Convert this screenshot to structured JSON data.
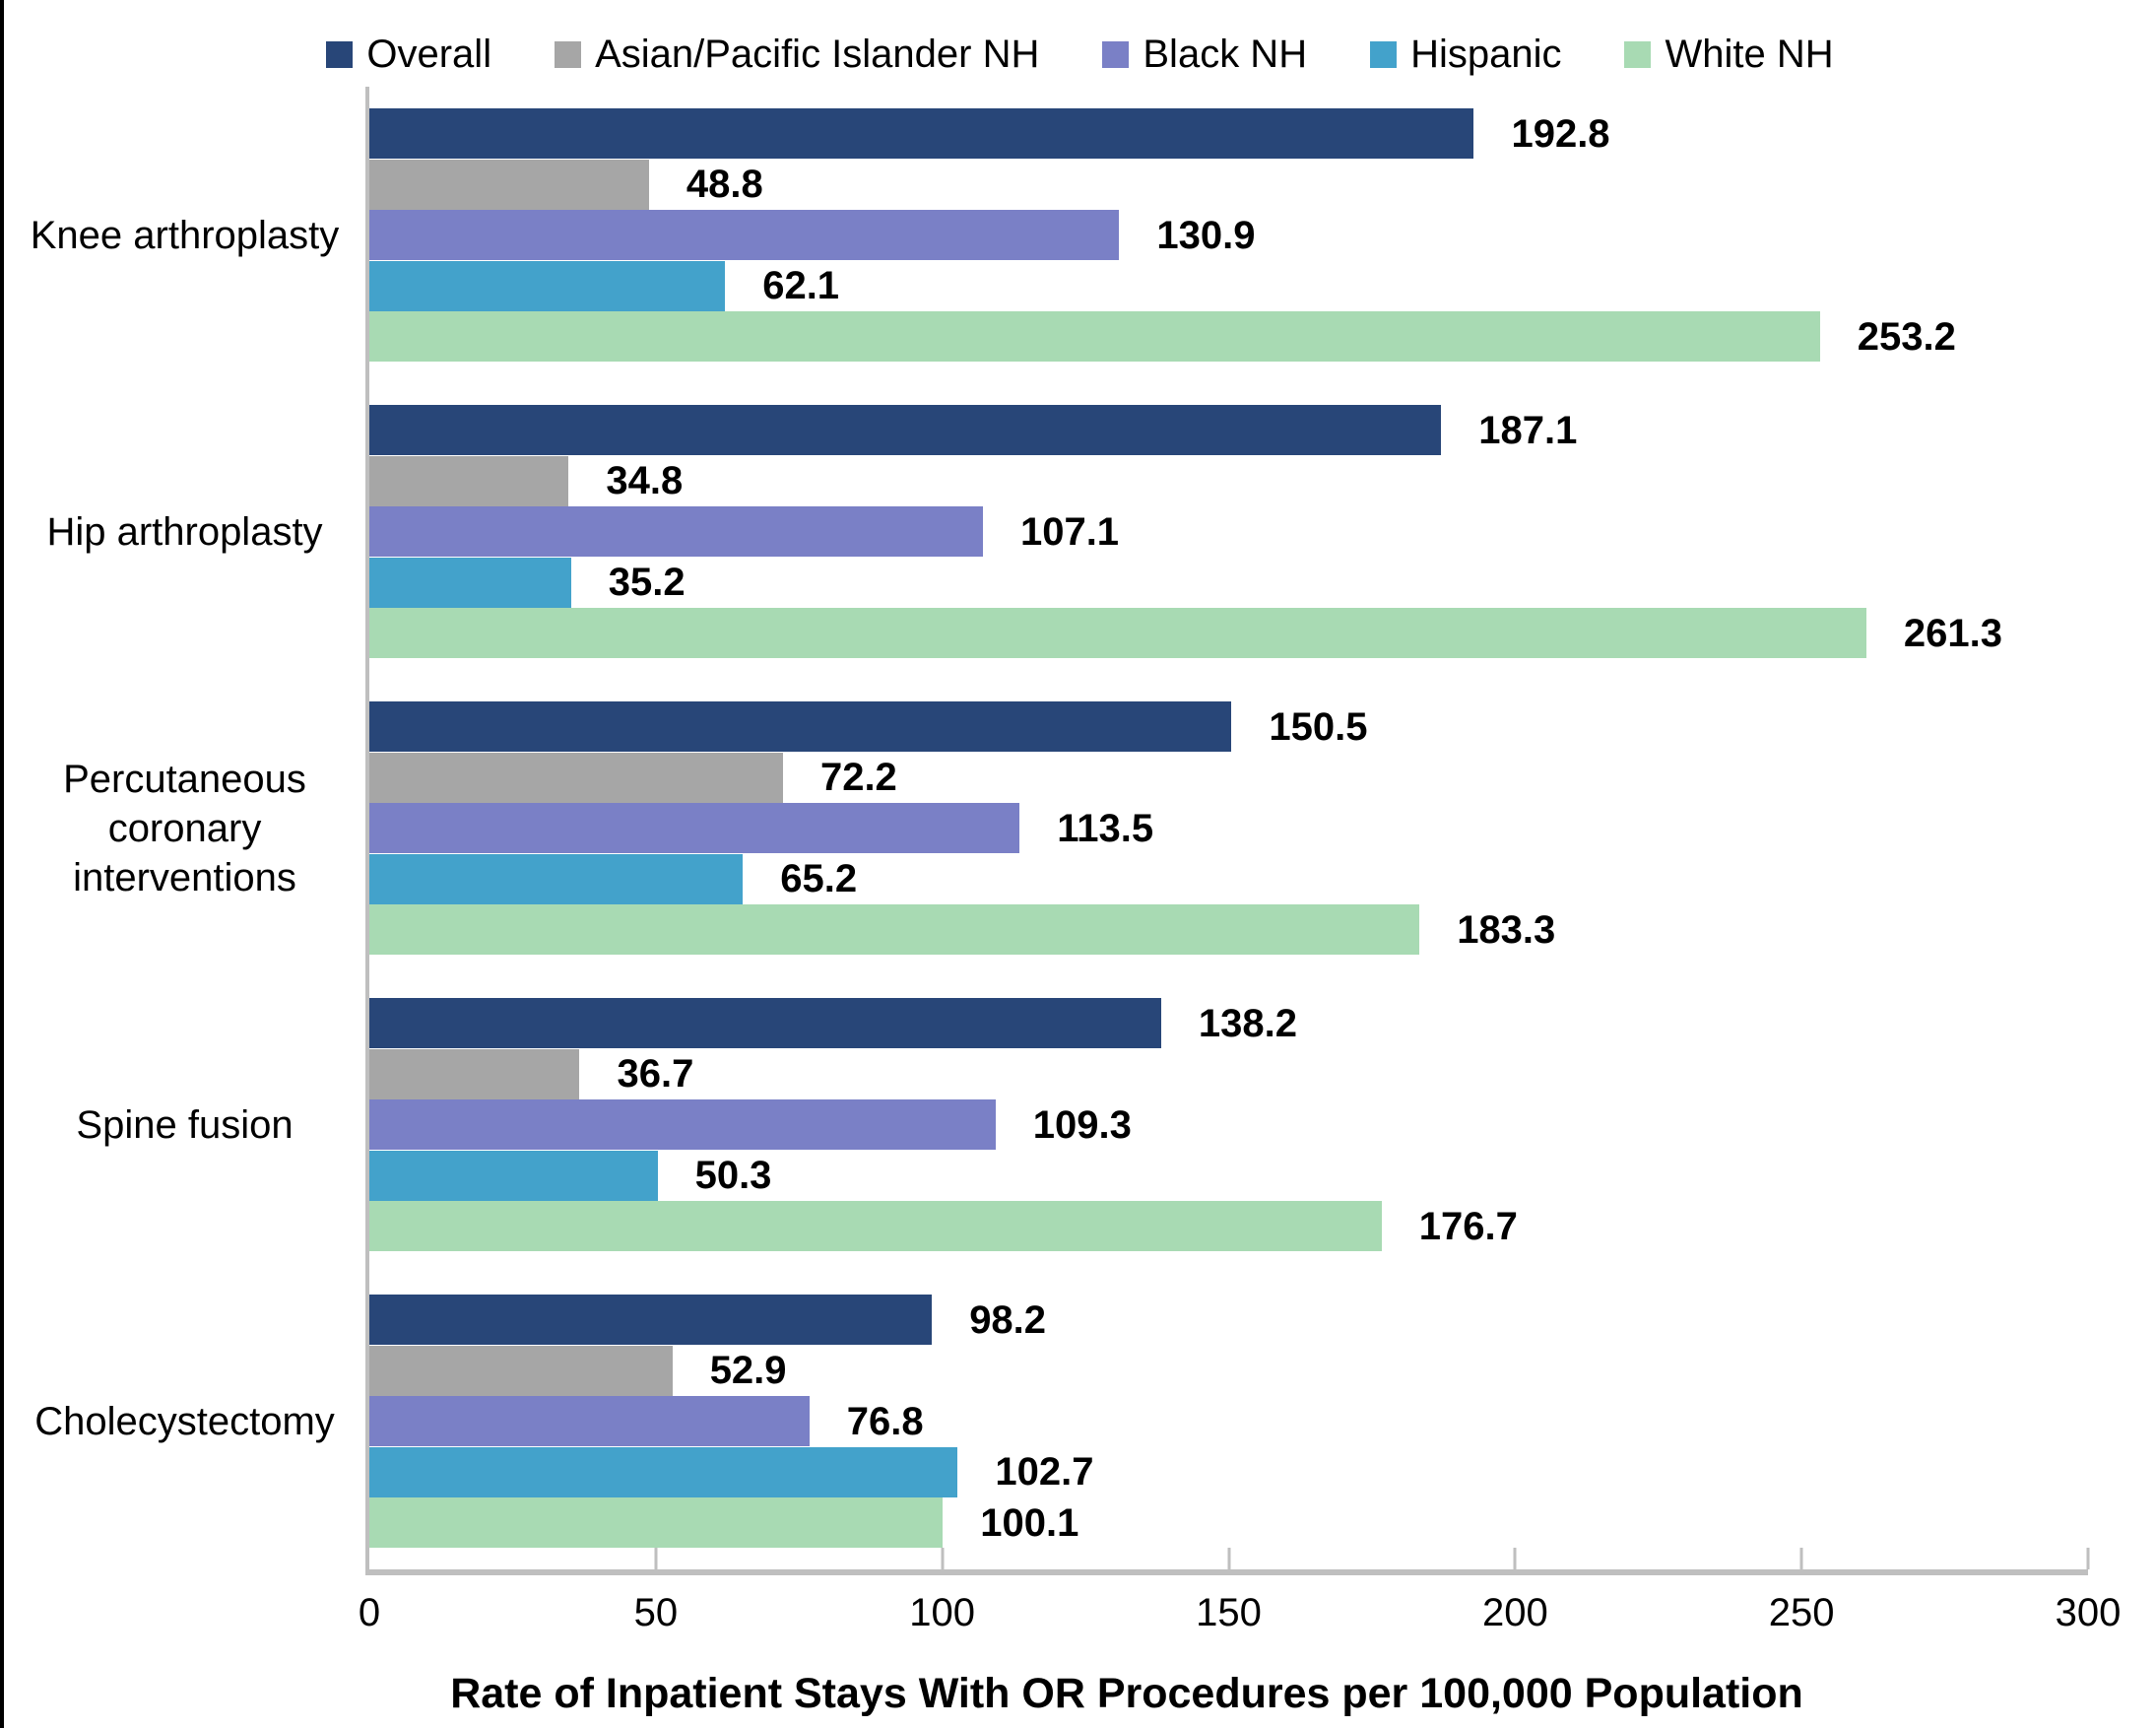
{
  "chart_data": {
    "type": "bar",
    "orientation": "horizontal",
    "title": "",
    "xlabel": "Rate of Inpatient Stays With OR Procedures per 100,000 Population",
    "ylabel": "",
    "xlim": [
      0,
      300
    ],
    "xticks": [
      0,
      50,
      100,
      150,
      200,
      250,
      300
    ],
    "grid": false,
    "legend_position": "top",
    "value_labels": true,
    "categories": [
      "Knee arthroplasty",
      "Hip arthroplasty",
      "Percutaneous coronary interventions",
      "Spine fusion",
      "Cholecystectomy"
    ],
    "series": [
      {
        "name": "Overall",
        "color": "#284678",
        "values": [
          192.8,
          187.1,
          150.5,
          138.2,
          98.2
        ]
      },
      {
        "name": "Asian/Pacific Islander NH",
        "color": "#A6A6A6",
        "values": [
          48.8,
          34.8,
          72.2,
          36.7,
          52.9
        ]
      },
      {
        "name": "Black NH",
        "color": "#7A80C6",
        "values": [
          130.9,
          107.1,
          113.5,
          109.3,
          76.8
        ]
      },
      {
        "name": "Hispanic",
        "color": "#43A2CB",
        "values": [
          62.1,
          35.2,
          65.2,
          50.3,
          102.7
        ]
      },
      {
        "name": "White NH",
        "color": "#A8DAB3",
        "values": [
          253.2,
          261.3,
          183.3,
          176.7,
          100.1
        ]
      }
    ],
    "axis_color": "#BFBFBF"
  }
}
